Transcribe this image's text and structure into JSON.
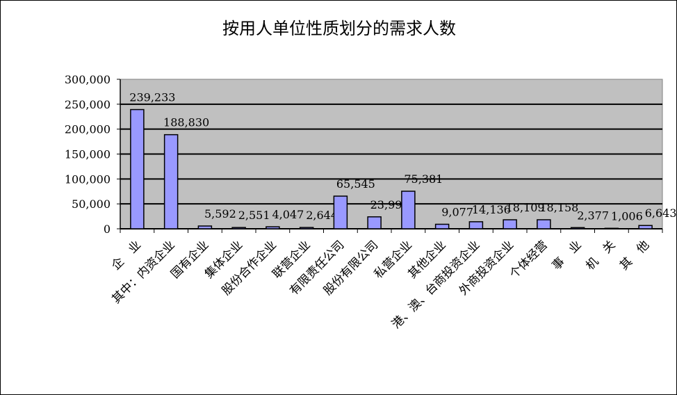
{
  "chart_data": {
    "type": "bar",
    "title": "按用人单位性质划分的需求人数",
    "xlabel": "",
    "ylabel": "",
    "ylim": [
      0,
      300000
    ],
    "yticks": [
      "0",
      "50,000",
      "100,000",
      "150,000",
      "200,000",
      "250,000",
      "300,000"
    ],
    "grid": true,
    "legend": "none",
    "colors": {
      "bar": "#9999ff",
      "plot_bg": "#c0c0c0",
      "grid": "#000000"
    },
    "categories": [
      "企　业",
      "其中：内资企业",
      "国有企业",
      "集体企业",
      "股份合作企业",
      "联营企业",
      "有限责任公司",
      "股份有限公司",
      "私营企业",
      "其他企业",
      "港、澳、台商投资企业",
      "外商投资企业",
      "个体经营",
      "事　业",
      "机　关",
      "其　他"
    ],
    "values": [
      239233,
      188830,
      5592,
      2551,
      4047,
      2644,
      65545,
      23993,
      75381,
      9077,
      14136,
      18109,
      18158,
      2377,
      1006,
      6643
    ],
    "data_labels": [
      "239,233",
      "188,830",
      "5,592",
      "2,551",
      "4,047",
      "2,644",
      "65,545",
      "23,993",
      "75,381",
      "9,077",
      "14,136",
      "18,109",
      "18,158",
      "2,377",
      "1,006",
      "6,643"
    ]
  }
}
